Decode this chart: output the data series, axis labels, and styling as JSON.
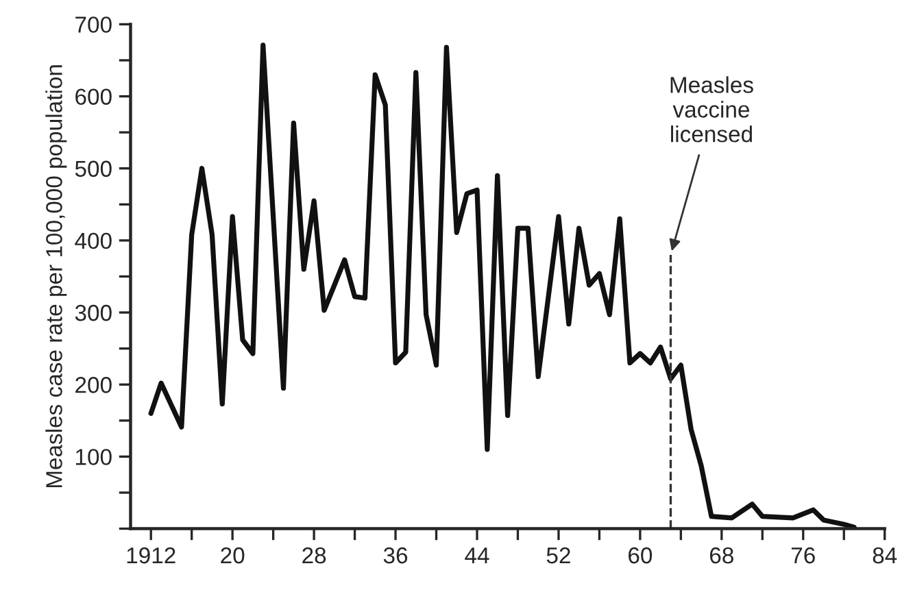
{
  "chart_data": {
    "type": "line",
    "ylabel": "Measles case rate per 100,000 population",
    "x": [
      1912,
      1913,
      1915,
      1916,
      1917,
      1918,
      1919,
      1920,
      1921,
      1922,
      1923,
      1925,
      1926,
      1927,
      1928,
      1929,
      1931,
      1932,
      1933,
      1934,
      1935,
      1936,
      1937,
      1938,
      1939,
      1940,
      1941,
      1942,
      1943,
      1944,
      1945,
      1946,
      1947,
      1948,
      1949,
      1950,
      1952,
      1953,
      1954,
      1955,
      1956,
      1957,
      1958,
      1959,
      1960,
      1961,
      1962,
      1963,
      1964,
      1965,
      1966,
      1967,
      1969,
      1971,
      1972,
      1975,
      1977,
      1978,
      1980,
      1981
    ],
    "series": [
      {
        "color": "#111111",
        "values": [
          160,
          202,
          141,
          408,
          500,
          408,
          173,
          433,
          262,
          243,
          671,
          195,
          563,
          360,
          455,
          303,
          373,
          322,
          320,
          630,
          588,
          230,
          245,
          633,
          297,
          227,
          668,
          411,
          465,
          470,
          110,
          490,
          157,
          417,
          417,
          211,
          433,
          284,
          417,
          338,
          354,
          297,
          430,
          230,
          243,
          230,
          252,
          208,
          227,
          138,
          87,
          17,
          15,
          34,
          17,
          15,
          26,
          12,
          6,
          2
        ]
      }
    ],
    "xlim": [
      1910,
      1984
    ],
    "xticks": [
      {
        "value": 1912,
        "label": "1912"
      },
      {
        "value": 1916,
        "label": null
      },
      {
        "value": 1920,
        "label": "20"
      },
      {
        "value": 1924,
        "label": null
      },
      {
        "value": 1928,
        "label": "28"
      },
      {
        "value": 1932,
        "label": null
      },
      {
        "value": 1936,
        "label": "36"
      },
      {
        "value": 1940,
        "label": null
      },
      {
        "value": 1944,
        "label": "44"
      },
      {
        "value": 1948,
        "label": null
      },
      {
        "value": 1952,
        "label": "52"
      },
      {
        "value": 1956,
        "label": null
      },
      {
        "value": 1960,
        "label": "60"
      },
      {
        "value": 1964,
        "label": null
      },
      {
        "value": 1968,
        "label": "68"
      },
      {
        "value": 1972,
        "label": null
      },
      {
        "value": 1976,
        "label": "76"
      },
      {
        "value": 1980,
        "label": null
      },
      {
        "value": 1984,
        "label": "84"
      }
    ],
    "ylim": [
      0,
      700
    ],
    "yticks": [
      {
        "value": 0,
        "label": null
      },
      {
        "value": 50,
        "label": null
      },
      100,
      {
        "value": 150,
        "label": null
      },
      200,
      {
        "value": 250,
        "label": null
      },
      300,
      {
        "value": 350,
        "label": null
      },
      400,
      {
        "value": 450,
        "label": null
      },
      500,
      {
        "value": 550,
        "label": null
      },
      600,
      {
        "value": 650,
        "label": null
      },
      700
    ],
    "ref_lines": [
      {
        "axis": "x",
        "value": 1963,
        "line_style": "dashed",
        "color": "#333333"
      }
    ],
    "annotations": [
      {
        "text": "Measles\nvaccine\nlicensed",
        "x": 1963,
        "y": 380
      }
    ],
    "grid": false,
    "legend": false,
    "marker": "none",
    "line_style": "solid"
  }
}
